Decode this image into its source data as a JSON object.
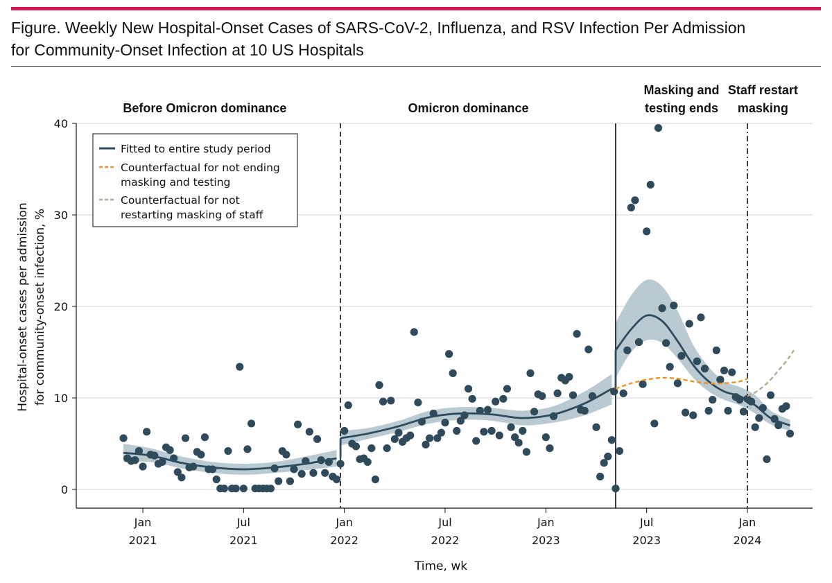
{
  "figure": {
    "title_line1": "Figure. Weekly New Hospital-Onset Cases of SARS-CoV-2, Influenza, and RSV Infection Per Admission",
    "title_line2": "for Community-Onset Infection at 10 US Hospitals"
  },
  "chart_data": {
    "type": "scatter",
    "xlabel": "Time, wk",
    "ylabel_line1": "Hospital-onset cases per admission",
    "ylabel_line2": "for community-onset infection, %",
    "ylim": [
      0,
      40
    ],
    "yticks": [
      "0",
      "10",
      "20",
      "30",
      "40"
    ],
    "xrange_weeks": [
      -8,
      160
    ],
    "xticks": [
      {
        "week": 4,
        "label1": "Jan",
        "label2": "2021"
      },
      {
        "week": 30,
        "label1": "Jul",
        "label2": "2021"
      },
      {
        "week": 56,
        "label1": "Jan",
        "label2": "2022"
      },
      {
        "week": 82,
        "label1": "Jul",
        "label2": "2022"
      },
      {
        "week": 108,
        "label1": "Jan",
        "label2": "2023"
      },
      {
        "week": 134,
        "label1": "Jul",
        "label2": "2023"
      },
      {
        "week": 160,
        "label1": "Jan",
        "label2": "2024"
      }
    ],
    "phases": [
      {
        "name": "before",
        "line1": "",
        "line2": "Before Omicron dominance",
        "center_week": 20
      },
      {
        "name": "omicron",
        "line1": "",
        "line2": "Omicron dominance",
        "center_week": 88
      },
      {
        "name": "masking-ends",
        "line1": "Masking and",
        "line2": "testing ends",
        "center_week": 143
      },
      {
        "name": "staff-restart",
        "line1": "Staff restart",
        "line2": "masking",
        "center_week": 164
      }
    ],
    "boundaries": [
      {
        "name": "omicron-start",
        "week": 55,
        "style": "dashed"
      },
      {
        "name": "masking-end",
        "week": 126,
        "style": "solid"
      },
      {
        "name": "staff-restart",
        "week": 160,
        "style": "dashdot"
      }
    ],
    "legend": [
      {
        "name": "fitted",
        "label_line1": "Fitted to entire study period",
        "label_line2": "",
        "color": "#2e4c5e",
        "style": "solid"
      },
      {
        "name": "cf-masking",
        "label_line1": "Counterfactual for not ending",
        "label_line2": "masking and testing",
        "color": "#f0901e",
        "style": "dashed"
      },
      {
        "name": "cf-staff",
        "label_line1": "Counterfactual for not",
        "label_line2": "restarting masking of staff",
        "color": "#b4a891",
        "style": "dashed"
      }
    ],
    "colors": {
      "points": "#2f4b5b",
      "fitted": "#2e4c5e",
      "band": "#b5c7d0",
      "cf_masking": "#f0901e",
      "cf_staff": "#b4a891"
    },
    "fitted": [
      {
        "x": [
          -1,
          6,
          14,
          22,
          30,
          38,
          46,
          54
        ],
        "y": [
          4.0,
          3.7,
          2.9,
          2.4,
          2.2,
          2.4,
          2.8,
          3.4
        ],
        "lo": [
          3.0,
          3.0,
          2.3,
          1.8,
          1.6,
          1.8,
          2.1,
          2.5
        ],
        "hi": [
          5.0,
          4.5,
          3.6,
          3.0,
          2.8,
          3.0,
          3.6,
          4.3
        ]
      },
      {
        "x": [
          55,
          62,
          70,
          78,
          86,
          94,
          102,
          110,
          118,
          125
        ],
        "y": [
          5.6,
          6.1,
          6.9,
          7.9,
          8.3,
          8.2,
          7.8,
          8.2,
          9.4,
          11.0
        ],
        "lo": [
          4.8,
          5.5,
          6.3,
          7.2,
          7.6,
          7.5,
          7.0,
          7.3,
          8.1,
          9.3
        ],
        "hi": [
          6.4,
          6.7,
          7.5,
          8.6,
          9.0,
          8.9,
          8.6,
          9.1,
          10.7,
          12.6
        ]
      },
      {
        "x": [
          126,
          130,
          134,
          138,
          142,
          146,
          150,
          154,
          158,
          162,
          166,
          171
        ],
        "y": [
          15.2,
          17.5,
          19.0,
          18.4,
          16.2,
          13.6,
          11.8,
          10.7,
          10.2,
          9.2,
          7.8,
          7.0
        ],
        "lo": [
          12.2,
          15.0,
          16.3,
          16.0,
          14.3,
          12.2,
          10.7,
          9.8,
          9.2,
          8.3,
          7.1,
          6.4
        ],
        "hi": [
          18.2,
          21.2,
          22.9,
          22.2,
          19.5,
          15.8,
          13.4,
          11.8,
          11.2,
          10.3,
          8.6,
          7.6
        ]
      }
    ],
    "counterfactual_masking": {
      "x": [
        126,
        130,
        134,
        138,
        142,
        146,
        150,
        154,
        158,
        160
      ],
      "y": [
        11.0,
        11.6,
        12.0,
        12.2,
        12.1,
        11.8,
        11.6,
        11.6,
        11.8,
        12.1
      ]
    },
    "counterfactual_staff": {
      "x": [
        160,
        162,
        164,
        166,
        168,
        170,
        172
      ],
      "y": [
        10.2,
        10.6,
        11.2,
        12.0,
        13.0,
        14.0,
        15.2
      ]
    },
    "points": [
      [
        -1,
        5.6
      ],
      [
        0,
        3.4
      ],
      [
        1,
        3.1
      ],
      [
        2,
        3.2
      ],
      [
        3,
        4.2
      ],
      [
        4,
        2.5
      ],
      [
        5,
        6.3
      ],
      [
        6,
        3.8
      ],
      [
        7,
        3.7
      ],
      [
        8,
        2.8
      ],
      [
        9,
        3.0
      ],
      [
        10,
        4.6
      ],
      [
        11,
        4.3
      ],
      [
        12,
        3.4
      ],
      [
        13,
        1.9
      ],
      [
        14,
        1.3
      ],
      [
        15,
        5.6
      ],
      [
        16,
        2.4
      ],
      [
        17,
        2.5
      ],
      [
        18,
        4.1
      ],
      [
        19,
        3.8
      ],
      [
        20,
        5.7
      ],
      [
        21,
        2.2
      ],
      [
        22,
        2.2
      ],
      [
        23,
        1.1
      ],
      [
        24,
        0.1
      ],
      [
        25,
        0.1
      ],
      [
        26,
        4.2
      ],
      [
        27,
        0.1
      ],
      [
        28,
        0.1
      ],
      [
        29,
        13.4
      ],
      [
        30,
        0.1
      ],
      [
        31,
        4.4
      ],
      [
        32,
        7.2
      ],
      [
        33,
        0.1
      ],
      [
        34,
        0.1
      ],
      [
        35,
        0.1
      ],
      [
        36,
        0.1
      ],
      [
        37,
        0.1
      ],
      [
        38,
        2.3
      ],
      [
        39,
        0.9
      ],
      [
        40,
        4.2
      ],
      [
        41,
        3.8
      ],
      [
        42,
        0.9
      ],
      [
        43,
        2.2
      ],
      [
        44,
        7.1
      ],
      [
        45,
        1.7
      ],
      [
        46,
        3.1
      ],
      [
        47,
        6.3
      ],
      [
        48,
        1.8
      ],
      [
        49,
        5.5
      ],
      [
        50,
        3.2
      ],
      [
        51,
        1.8
      ],
      [
        52,
        3.0
      ],
      [
        53,
        1.4
      ],
      [
        54,
        1.1
      ],
      [
        55,
        2.8
      ],
      [
        56,
        6.4
      ],
      [
        57,
        9.2
      ],
      [
        58,
        5.0
      ],
      [
        59,
        4.7
      ],
      [
        60,
        3.3
      ],
      [
        61,
        3.4
      ],
      [
        62,
        3.0
      ],
      [
        63,
        4.5
      ],
      [
        64,
        1.1
      ],
      [
        65,
        11.4
      ],
      [
        66,
        9.6
      ],
      [
        67,
        4.5
      ],
      [
        68,
        9.7
      ],
      [
        69,
        5.5
      ],
      [
        70,
        6.2
      ],
      [
        71,
        5.2
      ],
      [
        72,
        5.6
      ],
      [
        73,
        5.9
      ],
      [
        74,
        17.2
      ],
      [
        75,
        9.5
      ],
      [
        76,
        7.4
      ],
      [
        77,
        4.9
      ],
      [
        78,
        5.6
      ],
      [
        79,
        8.3
      ],
      [
        80,
        5.6
      ],
      [
        81,
        6.2
      ],
      [
        82,
        7.3
      ],
      [
        83,
        14.8
      ],
      [
        84,
        12.7
      ],
      [
        85,
        6.4
      ],
      [
        86,
        7.5
      ],
      [
        87,
        8.1
      ],
      [
        88,
        11.0
      ],
      [
        89,
        9.9
      ],
      [
        90,
        5.3
      ],
      [
        91,
        8.6
      ],
      [
        92,
        6.3
      ],
      [
        93,
        8.7
      ],
      [
        94,
        6.4
      ],
      [
        95,
        9.6
      ],
      [
        96,
        5.9
      ],
      [
        97,
        9.9
      ],
      [
        98,
        11.0
      ],
      [
        99,
        6.8
      ],
      [
        100,
        5.7
      ],
      [
        101,
        5.1
      ],
      [
        102,
        6.4
      ],
      [
        103,
        4.1
      ],
      [
        104,
        12.7
      ],
      [
        105,
        8.5
      ],
      [
        106,
        10.4
      ],
      [
        107,
        10.2
      ],
      [
        108,
        5.7
      ],
      [
        109,
        4.5
      ],
      [
        110,
        8.0
      ],
      [
        111,
        10.5
      ],
      [
        112,
        12.2
      ],
      [
        113,
        11.9
      ],
      [
        114,
        12.3
      ],
      [
        115,
        10.3
      ],
      [
        116,
        17.0
      ],
      [
        117,
        8.7
      ],
      [
        118,
        8.6
      ],
      [
        119,
        15.3
      ],
      [
        120,
        10.2
      ],
      [
        121,
        6.8
      ],
      [
        122,
        1.4
      ],
      [
        123,
        2.9
      ],
      [
        124,
        3.6
      ],
      [
        125,
        5.4
      ],
      [
        125.6,
        10.7
      ],
      [
        126,
        0.1
      ],
      [
        127,
        4.2
      ],
      [
        128,
        10.5
      ],
      [
        129,
        15.2
      ],
      [
        130,
        30.8
      ],
      [
        131,
        31.6
      ],
      [
        132,
        16.1
      ],
      [
        133,
        11.5
      ],
      [
        134,
        28.2
      ],
      [
        135,
        33.3
      ],
      [
        136,
        7.2
      ],
      [
        137,
        39.5
      ],
      [
        138,
        19.8
      ],
      [
        139,
        16.0
      ],
      [
        140,
        13.4
      ],
      [
        141,
        20.1
      ],
      [
        142,
        11.6
      ],
      [
        143,
        14.6
      ],
      [
        144,
        8.4
      ],
      [
        145,
        18.1
      ],
      [
        146,
        8.1
      ],
      [
        147,
        14.0
      ],
      [
        148,
        18.8
      ],
      [
        149,
        13.2
      ],
      [
        150,
        8.6
      ],
      [
        151,
        9.8
      ],
      [
        152,
        15.2
      ],
      [
        153,
        12.0
      ],
      [
        154,
        13.0
      ],
      [
        155,
        8.6
      ],
      [
        156,
        12.8
      ],
      [
        157,
        10.1
      ],
      [
        158,
        9.8
      ],
      [
        159,
        8.5
      ],
      [
        160,
        9.9
      ],
      [
        161,
        9.6
      ],
      [
        162,
        6.8
      ],
      [
        163,
        7.8
      ],
      [
        164,
        8.9
      ],
      [
        165,
        3.3
      ],
      [
        166,
        10.3
      ],
      [
        167,
        7.7
      ],
      [
        168,
        7.0
      ],
      [
        169,
        8.8
      ],
      [
        170,
        9.1
      ],
      [
        171,
        6.1
      ]
    ]
  }
}
